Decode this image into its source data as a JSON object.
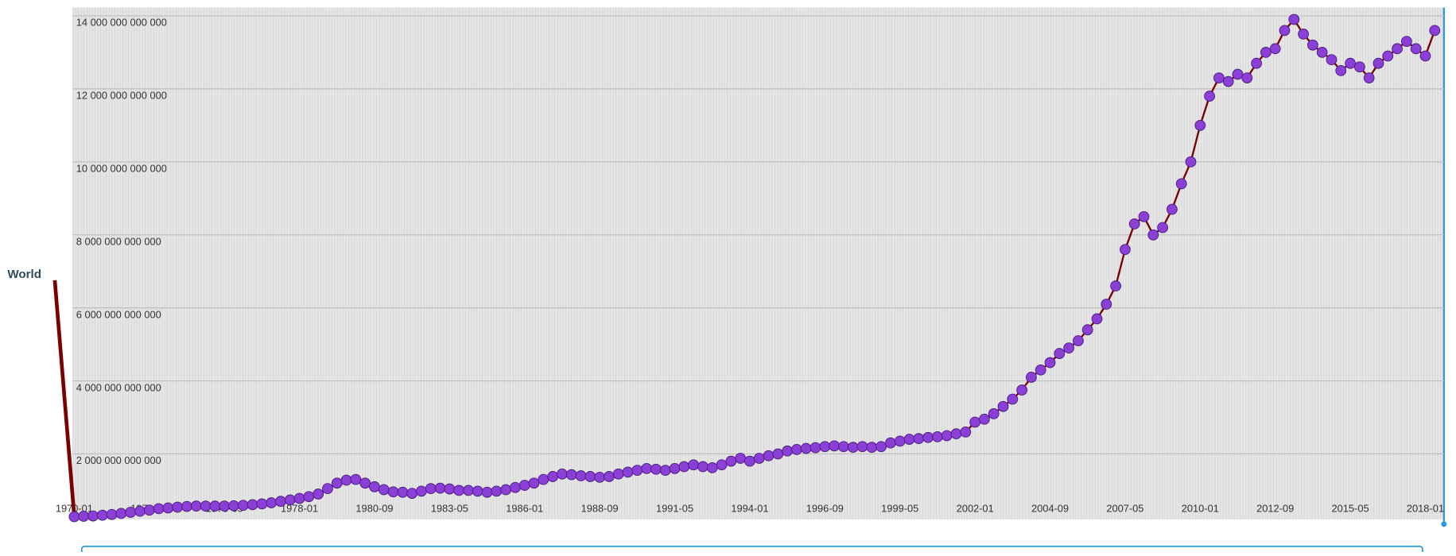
{
  "chart_data": {
    "type": "scatter-line",
    "x": [
      "1970-01",
      "1970-05",
      "1970-09",
      "1971-01",
      "1971-05",
      "1971-09",
      "1972-01",
      "1972-05",
      "1972-09",
      "1973-01",
      "1973-05",
      "1973-09",
      "1974-01",
      "1974-05",
      "1974-09",
      "1975-01",
      "1975-05",
      "1975-09",
      "1976-01",
      "1976-05",
      "1976-09",
      "1977-01",
      "1977-05",
      "1977-09",
      "1978-01",
      "1978-05",
      "1978-09",
      "1979-01",
      "1979-05",
      "1979-09",
      "1980-01",
      "1980-05",
      "1980-09",
      "1981-01",
      "1981-05",
      "1981-09",
      "1982-01",
      "1982-05",
      "1982-09",
      "1983-01",
      "1983-05",
      "1983-09",
      "1984-01",
      "1984-05",
      "1984-09",
      "1985-01",
      "1985-05",
      "1985-09",
      "1986-01",
      "1986-05",
      "1986-09",
      "1987-01",
      "1987-05",
      "1987-09",
      "1988-01",
      "1988-05",
      "1988-09",
      "1989-01",
      "1989-05",
      "1989-09",
      "1990-01",
      "1990-05",
      "1990-09",
      "1991-01",
      "1991-05",
      "1991-09",
      "1992-01",
      "1992-05",
      "1992-09",
      "1993-01",
      "1993-05",
      "1993-09",
      "1994-01",
      "1994-05",
      "1994-09",
      "1995-01",
      "1995-05",
      "1995-09",
      "1996-01",
      "1996-05",
      "1996-09",
      "1997-01",
      "1997-05",
      "1997-09",
      "1998-01",
      "1998-05",
      "1998-09",
      "1999-01",
      "1999-05",
      "1999-09",
      "2000-01",
      "2000-05",
      "2000-09",
      "2001-01",
      "2001-05",
      "2001-09",
      "2002-01",
      "2002-05",
      "2002-09",
      "2003-01",
      "2003-05",
      "2003-09",
      "2004-01",
      "2004-05",
      "2004-09",
      "2005-01",
      "2005-05",
      "2005-09",
      "2006-01",
      "2006-05",
      "2006-09",
      "2007-01",
      "2007-05",
      "2007-09",
      "2008-01",
      "2008-05",
      "2008-09",
      "2009-01",
      "2009-05",
      "2009-09",
      "2010-01",
      "2010-05",
      "2010-09",
      "2011-01",
      "2011-05",
      "2011-09",
      "2012-01",
      "2012-05",
      "2012-09",
      "2013-01",
      "2013-05",
      "2013-09",
      "2014-01",
      "2014-05",
      "2014-09",
      "2015-01",
      "2015-05",
      "2015-09",
      "2016-01",
      "2016-05",
      "2016-09",
      "2017-01",
      "2017-05",
      "2017-09",
      "2018-01",
      "2018-05"
    ],
    "series": [
      {
        "name": "World",
        "color": "#8b3fd6",
        "line_color": "#7a0000",
        "values": [
          280000000000.0,
          290000000000.0,
          300000000000.0,
          320000000000.0,
          340000000000.0,
          370000000000.0,
          400000000000.0,
          430000000000.0,
          460000000000.0,
          500000000000.0,
          520000000000.0,
          540000000000.0,
          560000000000.0,
          570000000000.0,
          570000000000.0,
          570000000000.0,
          570000000000.0,
          580000000000.0,
          590000000000.0,
          610000000000.0,
          630000000000.0,
          660000000000.0,
          700000000000.0,
          740000000000.0,
          780000000000.0,
          830000000000.0,
          900000000000.0,
          1050000000000.0,
          1200000000000.0,
          1280000000000.0,
          1300000000000.0,
          1200000000000.0,
          1100000000000.0,
          1020000000000.0,
          960000000000.0,
          950000000000.0,
          920000000000.0,
          980000000000.0,
          1050000000000.0,
          1060000000000.0,
          1040000000000.0,
          1000000000000.0,
          1000000000000.0,
          980000000000.0,
          950000000000.0,
          980000000000.0,
          1020000000000.0,
          1080000000000.0,
          1140000000000.0,
          1200000000000.0,
          1300000000000.0,
          1380000000000.0,
          1450000000000.0,
          1430000000000.0,
          1400000000000.0,
          1380000000000.0,
          1360000000000.0,
          1380000000000.0,
          1450000000000.0,
          1500000000000.0,
          1550000000000.0,
          1600000000000.0,
          1580000000000.0,
          1550000000000.0,
          1600000000000.0,
          1650000000000.0,
          1700000000000.0,
          1650000000000.0,
          1620000000000.0,
          1700000000000.0,
          1800000000000.0,
          1880000000000.0,
          1800000000000.0,
          1880000000000.0,
          1950000000000.0,
          2000000000000.0,
          2080000000000.0,
          2120000000000.0,
          2150000000000.0,
          2170000000000.0,
          2200000000000.0,
          2220000000000.0,
          2200000000000.0,
          2180000000000.0,
          2200000000000.0,
          2180000000000.0,
          2200000000000.0,
          2300000000000.0,
          2350000000000.0,
          2400000000000.0,
          2420000000000.0,
          2450000000000.0,
          2470000000000.0,
          2500000000000.0,
          2550000000000.0,
          2600000000000.0,
          2870000000000.0,
          2950000000000.0,
          3100000000000.0,
          3300000000000.0,
          3500000000000.0,
          3750000000000.0,
          4100000000000.0,
          4300000000000.0,
          4500000000000.0,
          4750000000000.0,
          4900000000000.0,
          5100000000000.0,
          5400000000000.0,
          5700000000000.0,
          6100000000000.0,
          6600000000000.0,
          7600000000000.0,
          8300000000000.0,
          8500000000000.0,
          8000000000000.0,
          8200000000000.0,
          8700000000000.0,
          9400000000000.0,
          10000000000000.0,
          11000000000000.0,
          11800000000000.0,
          12300000000000.0,
          12200000000000.0,
          12400000000000.0,
          12300000000000.0,
          12700000000000.0,
          13000000000000.0,
          13100000000000.0,
          13600000000000.0,
          13900000000000.0,
          13500000000000.0,
          13200000000000.0,
          13000000000000.0,
          12800000000000.0,
          12500000000000.0,
          12700000000000.0,
          12600000000000.0,
          12300000000000.0,
          12700000000000.0,
          12900000000000.0,
          13100000000000.0,
          13300000000000.0,
          13100000000000.0,
          12900000000000.0,
          13600000000000.0
        ]
      }
    ],
    "ylim": [
      0,
      14000000000000
    ],
    "yticks": [
      {
        "value": 2000000000000,
        "label": "2 000 000 000 000"
      },
      {
        "value": 4000000000000,
        "label": "4 000 000 000 000"
      },
      {
        "value": 6000000000000,
        "label": "6 000 000 000 000"
      },
      {
        "value": 8000000000000,
        "label": "8 000 000 000 000"
      },
      {
        "value": 10000000000000,
        "label": "10 000 000 000 000"
      },
      {
        "value": 12000000000000,
        "label": "12 000 000 000 000"
      },
      {
        "value": 14000000000000,
        "label": "14 000 000 000 000"
      }
    ],
    "xticks": [
      "1970-01",
      "1972-09",
      "1975-05",
      "1978-01",
      "1980-09",
      "1983-05",
      "1986-01",
      "1988-09",
      "1991-05",
      "1994-01",
      "1996-09",
      "1999-05",
      "2002-01",
      "2004-09",
      "2007-05",
      "2010-01",
      "2012-09",
      "2015-05",
      "2018-01"
    ],
    "grid": true
  }
}
